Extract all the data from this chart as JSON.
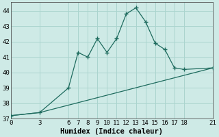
{
  "xlabel": "Humidex (Indice chaleur)",
  "bg_color": "#ceeae6",
  "grid_color": "#aad4ce",
  "line_color": "#1e6b5e",
  "line1_x": [
    0,
    3,
    6,
    7,
    8,
    9,
    10,
    11,
    12,
    13,
    14,
    15,
    16,
    17,
    18,
    21
  ],
  "line1_y": [
    37.2,
    37.4,
    39.0,
    41.3,
    41.0,
    42.2,
    41.3,
    42.2,
    43.8,
    44.2,
    43.3,
    41.9,
    41.5,
    40.3,
    40.2,
    40.3
  ],
  "line2_x": [
    0,
    3,
    21
  ],
  "line2_y": [
    37.2,
    37.4,
    40.3
  ],
  "xlim": [
    0,
    21
  ],
  "ylim": [
    37.0,
    44.55
  ],
  "xticks": [
    0,
    3,
    6,
    7,
    8,
    9,
    10,
    11,
    12,
    13,
    14,
    15,
    16,
    17,
    18,
    21
  ],
  "yticks": [
    37,
    38,
    39,
    40,
    41,
    42,
    43,
    44
  ],
  "tick_fontsize": 6.5,
  "xlabel_fontsize": 7.5
}
